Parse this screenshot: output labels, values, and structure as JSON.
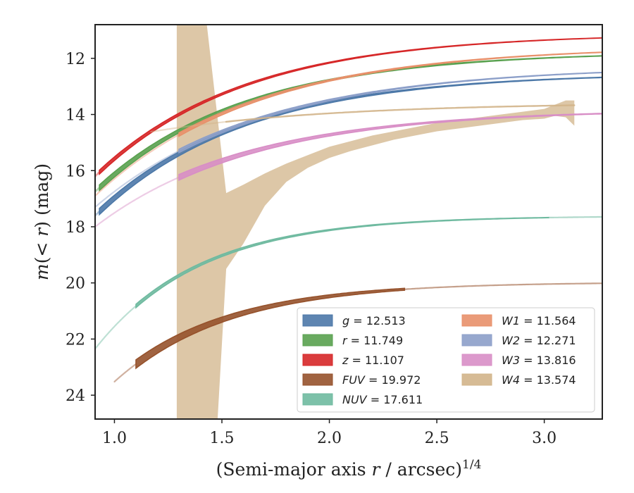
{
  "chart_data": {
    "type": "line",
    "xlabel": "(Semi-major axis r / arcsec)^1/4",
    "ylabel": "m(< r) (mag)",
    "xlim": [
      0.91,
      3.27
    ],
    "ylim": [
      24.85,
      10.8
    ],
    "y_inverted": true,
    "x_ticks": [
      1.0,
      1.5,
      2.0,
      2.5,
      3.0
    ],
    "x_tick_labels": [
      "1.0",
      "1.5",
      "2.0",
      "2.5",
      "3.0"
    ],
    "y_ticks": [
      12,
      14,
      16,
      18,
      20,
      22,
      24
    ],
    "y_tick_labels": [
      "12",
      "14",
      "16",
      "18",
      "20",
      "22",
      "24"
    ],
    "grid": false,
    "legend_position": "lower-right",
    "series": [
      {
        "name": "g = 12.513",
        "color": "#4c78a8",
        "asymptote": 12.513,
        "m0": 17.6,
        "k": 1.45,
        "x_start": 0.91,
        "x_end": 3.27,
        "width": 0.22,
        "faded_until": 0.93
      },
      {
        "name": "r = 11.749",
        "color": "#59a14f",
        "asymptote": 11.749,
        "m0": 16.75,
        "k": 1.45,
        "x_start": 0.91,
        "x_end": 3.27,
        "width": 0.2,
        "faded_until": 0.93
      },
      {
        "name": "z = 11.107",
        "color": "#d62728",
        "asymptote": 11.107,
        "m0": 16.2,
        "k": 1.45,
        "x_start": 0.91,
        "x_end": 3.27,
        "width": 0.14,
        "faded_until": 0.93
      },
      {
        "name": "FUV = 19.972",
        "color": "#96522c",
        "asymptote": 19.972,
        "m0": 24.2,
        "k": 1.95,
        "x_start": 1.0,
        "x_end": 3.27,
        "width": 0.3,
        "faded_until": 1.1,
        "faded_after": 2.35
      },
      {
        "name": "NUV = 17.611",
        "color": "#6fbaa0",
        "asymptote": 17.611,
        "m0": 22.35,
        "k": 2.05,
        "x_start": 0.91,
        "x_end": 3.27,
        "width": 0.12,
        "faded_until": 1.1,
        "faded_after": 3.02
      },
      {
        "name": "W1 = 11.564",
        "color": "#e8906a",
        "asymptote": 11.564,
        "m0": 16.9,
        "k": 1.35,
        "x_start": 0.91,
        "x_end": 3.27,
        "width": 0.12,
        "faded_until": 1.3
      },
      {
        "name": "W2 = 12.271",
        "color": "#8c9fc9",
        "asymptote": 12.271,
        "m0": 17.3,
        "k": 1.3,
        "x_start": 0.91,
        "x_end": 3.27,
        "width": 0.12,
        "faded_until": 1.3
      },
      {
        "name": "W3 = 13.816",
        "color": "#d88ec6",
        "asymptote": 13.816,
        "m0": 18.0,
        "k": 1.4,
        "x_start": 0.91,
        "x_end": 3.27,
        "width": 0.2,
        "faded_until": 1.3
      },
      {
        "name": "W4 = 13.574",
        "color": "#d2b48a",
        "asymptote": 13.574,
        "m0": 15.0,
        "k": 1.2,
        "x_start": 1.17,
        "x_end": 3.14,
        "width": 0.0,
        "faded_until": 1.52
      }
    ],
    "w4_band": {
      "color": "#d2b48a",
      "upper": [
        [
          1.29,
          10.8
        ],
        [
          1.43,
          10.8
        ],
        [
          1.52,
          16.8
        ],
        [
          1.6,
          16.5
        ],
        [
          1.7,
          16.1
        ],
        [
          1.8,
          15.75
        ],
        [
          1.9,
          15.45
        ],
        [
          2.0,
          15.15
        ],
        [
          2.1,
          14.95
        ],
        [
          2.2,
          14.75
        ],
        [
          2.3,
          14.6
        ],
        [
          2.4,
          14.45
        ],
        [
          2.5,
          14.3
        ],
        [
          2.6,
          14.2
        ],
        [
          2.7,
          14.1
        ],
        [
          2.8,
          14.0
        ],
        [
          2.9,
          13.9
        ],
        [
          3.0,
          13.8
        ],
        [
          3.05,
          13.65
        ],
        [
          3.1,
          13.5
        ],
        [
          3.14,
          13.5
        ]
      ],
      "lower": [
        [
          3.14,
          14.4
        ],
        [
          3.1,
          14.1
        ],
        [
          3.05,
          14.05
        ],
        [
          3.0,
          14.15
        ],
        [
          2.9,
          14.2
        ],
        [
          2.8,
          14.3
        ],
        [
          2.7,
          14.4
        ],
        [
          2.6,
          14.5
        ],
        [
          2.5,
          14.6
        ],
        [
          2.4,
          14.75
        ],
        [
          2.3,
          14.9
        ],
        [
          2.2,
          15.1
        ],
        [
          2.1,
          15.3
        ],
        [
          2.0,
          15.55
        ],
        [
          1.9,
          15.9
        ],
        [
          1.8,
          16.4
        ],
        [
          1.7,
          17.25
        ],
        [
          1.6,
          18.6
        ],
        [
          1.52,
          19.5
        ],
        [
          1.48,
          24.85
        ],
        [
          1.29,
          24.85
        ]
      ]
    }
  }
}
